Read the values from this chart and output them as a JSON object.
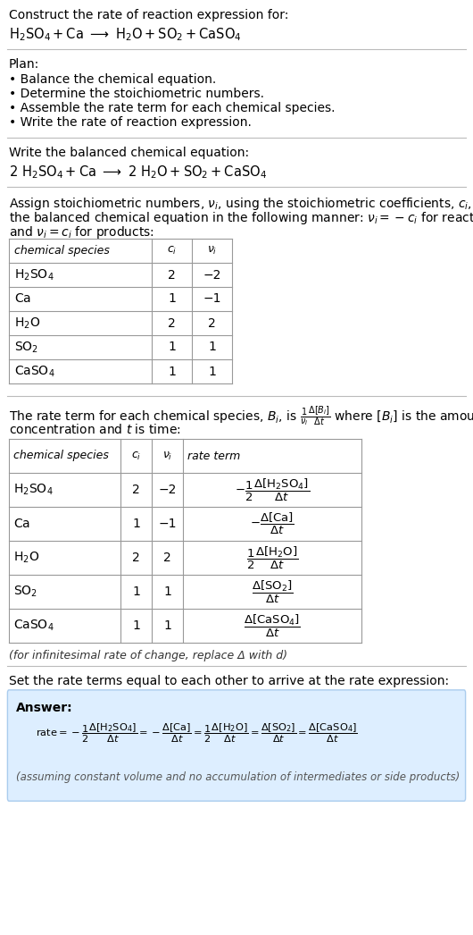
{
  "title_line1": "Construct the rate of reaction expression for:",
  "plan_header": "Plan:",
  "plan_items": [
    "• Balance the chemical equation.",
    "• Determine the stoichiometric numbers.",
    "• Assemble the rate term for each chemical species.",
    "• Write the rate of reaction expression."
  ],
  "balanced_header": "Write the balanced chemical equation:",
  "stoich_intro1": "Assign stoichiometric numbers, ",
  "stoich_intro2": ", using the stoichiometric coefficients, ",
  "stoich_intro3": ", from",
  "stoich_line2": "the balanced chemical equation in the following manner: ",
  "stoich_line3": "and ",
  "table1_species": [
    "H₂SO₄",
    "Ca",
    "H₂O",
    "SO₂",
    "CaSO₄"
  ],
  "table1_ci": [
    "2",
    "1",
    "2",
    "1",
    "1"
  ],
  "table1_vi": [
    "−2",
    "−1",
    "2",
    "1",
    "1"
  ],
  "rate_intro1": "The rate term for each chemical species, B",
  "rate_intro2": ", is ",
  "rate_intro3": " where [B",
  "rate_intro4": "] is the amount",
  "rate_line2": "concentration and t is time:",
  "table2_species": [
    "H₂SO₄",
    "Ca",
    "H₂O",
    "SO₂",
    "CaSO₄"
  ],
  "table2_ci": [
    "2",
    "1",
    "2",
    "1",
    "1"
  ],
  "table2_vi": [
    "−2",
    "−1",
    "2",
    "1",
    "1"
  ],
  "infinitesimal_note": "(for infinitesimal rate of change, replace Δ with d)",
  "set_rate_header": "Set the rate terms equal to each other to arrive at the rate expression:",
  "answer_label": "Answer:",
  "answer_box_color": "#ddeeff",
  "answer_border_color": "#aaccee",
  "assuming_note": "(assuming constant volume and no accumulation of intermediates or side products)",
  "bg_color": "#ffffff",
  "line_color": "#bbbbbb",
  "table_line_color": "#999999"
}
